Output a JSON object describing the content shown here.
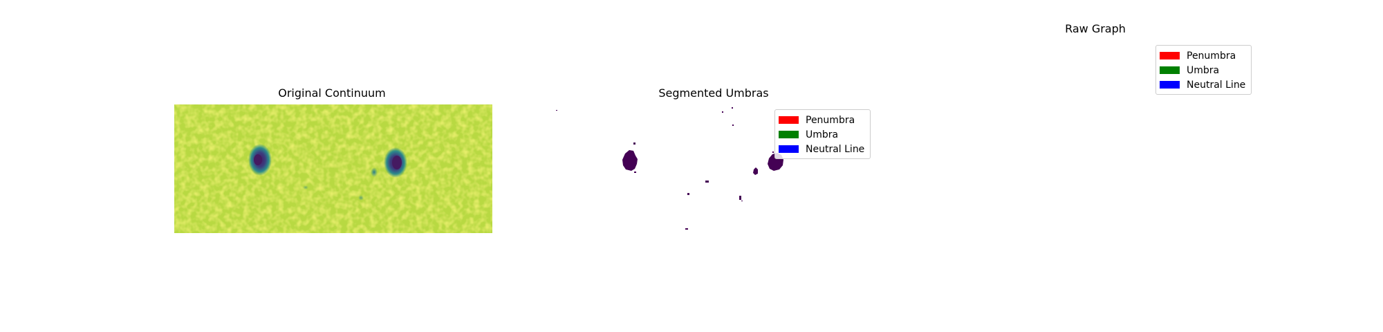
{
  "titles": {
    "original": "Original Continuum",
    "segmented": "Segmented Umbras",
    "raw": "Raw Graph"
  },
  "legend": [
    {
      "label": "Penumbra",
      "color": "#ff0000"
    },
    {
      "label": "Umbra",
      "color": "#008000"
    },
    {
      "label": "Neutral Line",
      "color": "#0000ff"
    }
  ],
  "colors": {
    "continuum_background": "#b8d942",
    "continuum_highlight": "#e3e62c",
    "continuum_shadow": "#7fcf62",
    "spot_outer": "#2b8a8c",
    "spot_inner": "#451a61",
    "umbra_mask": "#440154"
  }
}
